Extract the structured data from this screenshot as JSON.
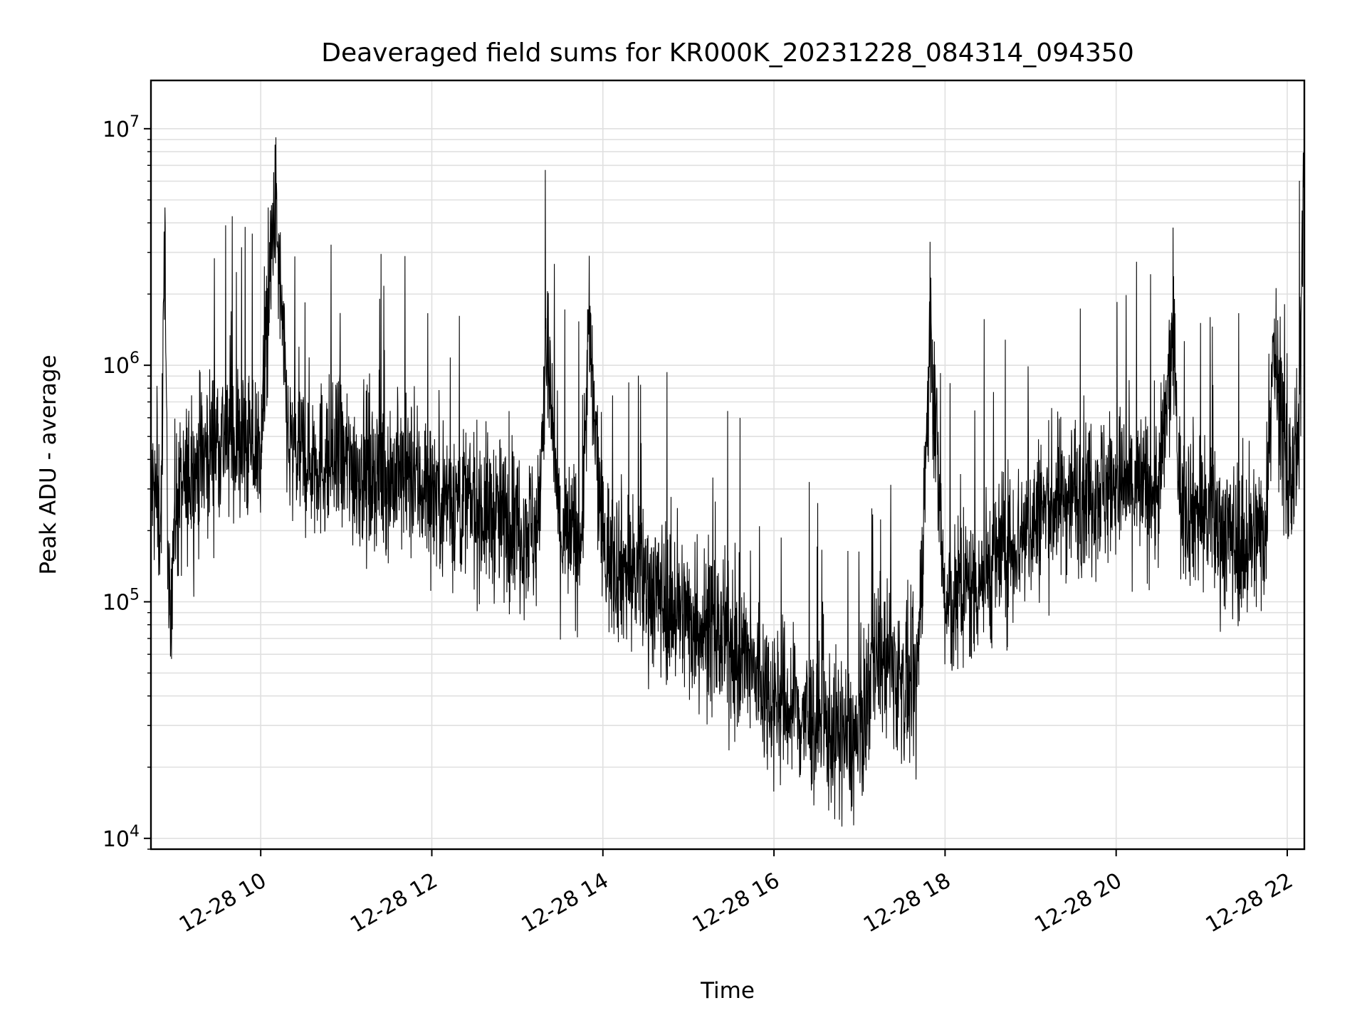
{
  "chart_data": {
    "type": "line",
    "title": "Deaveraged field sums for KR000K_20231228_084314_094350",
    "xlabel": "Time",
    "ylabel": "Peak ADU - average",
    "y_scale": "log",
    "grid": true,
    "legend": "none",
    "line_color": "#000000",
    "grid_color": "#e0e0e0",
    "xlim": [
      "2023-12-28 08:43",
      "2023-12-28 22:12"
    ],
    "ylim": [
      9000,
      16000000
    ],
    "x_ticks": [
      {
        "value": "2023-12-28 10:00",
        "label": "12-28 10"
      },
      {
        "value": "2023-12-28 12:00",
        "label": "12-28 12"
      },
      {
        "value": "2023-12-28 14:00",
        "label": "12-28 14"
      },
      {
        "value": "2023-12-28 16:00",
        "label": "12-28 16"
      },
      {
        "value": "2023-12-28 18:00",
        "label": "12-28 18"
      },
      {
        "value": "2023-12-28 20:00",
        "label": "12-28 20"
      },
      {
        "value": "2023-12-28 22:00",
        "label": "12-28 22"
      }
    ],
    "y_ticks": [
      {
        "value": 10000,
        "base": "10",
        "exp": "4"
      },
      {
        "value": 100000,
        "base": "10",
        "exp": "5"
      },
      {
        "value": 1000000,
        "base": "10",
        "exp": "6"
      },
      {
        "value": 10000000,
        "base": "10",
        "exp": "7"
      }
    ],
    "series": [
      {
        "points": [
          [
            "2023-12-28 08:44",
            300000
          ],
          [
            "2023-12-28 08:50",
            220000
          ],
          [
            "2023-12-28 08:53",
            3800000
          ],
          [
            "2023-12-28 08:55",
            70000
          ],
          [
            "2023-12-28 09:00",
            250000
          ],
          [
            "2023-12-28 09:10",
            330000
          ],
          [
            "2023-12-28 09:20",
            420000
          ],
          [
            "2023-12-28 09:30",
            500000
          ],
          [
            "2023-12-28 09:40",
            480000
          ],
          [
            "2023-12-28 09:50",
            450000
          ],
          [
            "2023-12-28 10:00",
            440000
          ],
          [
            "2023-12-28 10:10",
            5000000
          ],
          [
            "2023-12-28 10:13",
            2200000
          ],
          [
            "2023-12-28 10:20",
            430000
          ],
          [
            "2023-12-28 10:30",
            420000
          ],
          [
            "2023-12-28 10:40",
            400000
          ],
          [
            "2023-12-28 10:50",
            390000
          ],
          [
            "2023-12-28 11:00",
            380000
          ],
          [
            "2023-12-28 11:15",
            360000
          ],
          [
            "2023-12-28 11:30",
            340000
          ],
          [
            "2023-12-28 11:45",
            330000
          ],
          [
            "2023-12-28 12:00",
            300000
          ],
          [
            "2023-12-28 12:15",
            270000
          ],
          [
            "2023-12-28 12:30",
            250000
          ],
          [
            "2023-12-28 12:45",
            230000
          ],
          [
            "2023-12-28 13:00",
            210000
          ],
          [
            "2023-12-28 13:15",
            200000
          ],
          [
            "2023-12-28 13:20",
            1300000
          ],
          [
            "2023-12-28 13:30",
            190000
          ],
          [
            "2023-12-28 13:45",
            185000
          ],
          [
            "2023-12-28 13:50",
            1350000
          ],
          [
            "2023-12-28 14:00",
            170000
          ],
          [
            "2023-12-28 14:15",
            140000
          ],
          [
            "2023-12-28 14:30",
            120000
          ],
          [
            "2023-12-28 14:45",
            100000
          ],
          [
            "2023-12-28 15:00",
            85000
          ],
          [
            "2023-12-28 15:15",
            75000
          ],
          [
            "2023-12-28 15:30",
            65000
          ],
          [
            "2023-12-28 15:45",
            50000
          ],
          [
            "2023-12-28 16:00",
            40000
          ],
          [
            "2023-12-28 16:15",
            34000
          ],
          [
            "2023-12-28 16:30",
            30000
          ],
          [
            "2023-12-28 16:45",
            27000
          ],
          [
            "2023-12-28 17:00",
            25000
          ],
          [
            "2023-12-28 17:10",
            60000
          ],
          [
            "2023-12-28 17:20",
            55000
          ],
          [
            "2023-12-28 17:30",
            45000
          ],
          [
            "2023-12-28 17:40",
            40000
          ],
          [
            "2023-12-28 17:50",
            1400000
          ],
          [
            "2023-12-28 18:00",
            90000
          ],
          [
            "2023-12-28 18:15",
            110000
          ],
          [
            "2023-12-28 18:30",
            140000
          ],
          [
            "2023-12-28 18:45",
            170000
          ],
          [
            "2023-12-28 19:00",
            210000
          ],
          [
            "2023-12-28 19:15",
            260000
          ],
          [
            "2023-12-28 19:30",
            290000
          ],
          [
            "2023-12-28 19:45",
            300000
          ],
          [
            "2023-12-28 20:00",
            310000
          ],
          [
            "2023-12-28 20:15",
            300000
          ],
          [
            "2023-12-28 20:30",
            290000
          ],
          [
            "2023-12-28 20:40",
            1300000
          ],
          [
            "2023-12-28 20:45",
            270000
          ],
          [
            "2023-12-28 21:00",
            240000
          ],
          [
            "2023-12-28 21:15",
            200000
          ],
          [
            "2023-12-28 21:30",
            170000
          ],
          [
            "2023-12-28 21:45",
            210000
          ],
          [
            "2023-12-28 21:50",
            1350000
          ],
          [
            "2023-12-28 22:00",
            300000
          ],
          [
            "2023-12-28 22:08",
            400000
          ],
          [
            "2023-12-28 22:12",
            11500000
          ]
        ]
      }
    ]
  }
}
